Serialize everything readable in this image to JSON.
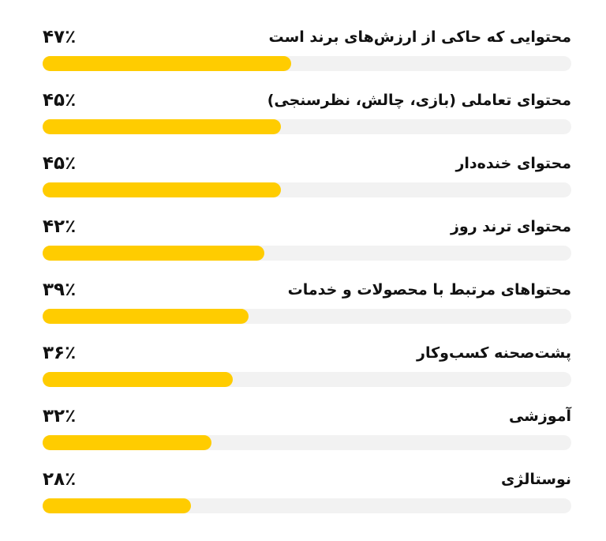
{
  "chart_data": {
    "type": "bar",
    "orientation": "horizontal",
    "xlim": [
      0,
      100
    ],
    "bar_color": "#ffcc00",
    "track_color": "#f2f2f2",
    "categories": [
      "محتوایی که حاکی از ارزش‌های برند است",
      "محتوای تعاملی (بازی، چالش، نظرسنجی)",
      "محتوای خنده‌دار",
      "محتوای ترند روز",
      "محتواهای مرتبط با محصولات و خدمات",
      "پشت‌صحنه کسب‌وکار",
      "آموزشی",
      "نوستالژی"
    ],
    "values": [
      47,
      45,
      45,
      42,
      39,
      36,
      32,
      28
    ],
    "value_labels": [
      "۴۷٪",
      "۴۵٪",
      "۴۵٪",
      "۴۲٪",
      "۳۹٪",
      "۳۶٪",
      "۳۲٪",
      "۲۸٪"
    ]
  }
}
